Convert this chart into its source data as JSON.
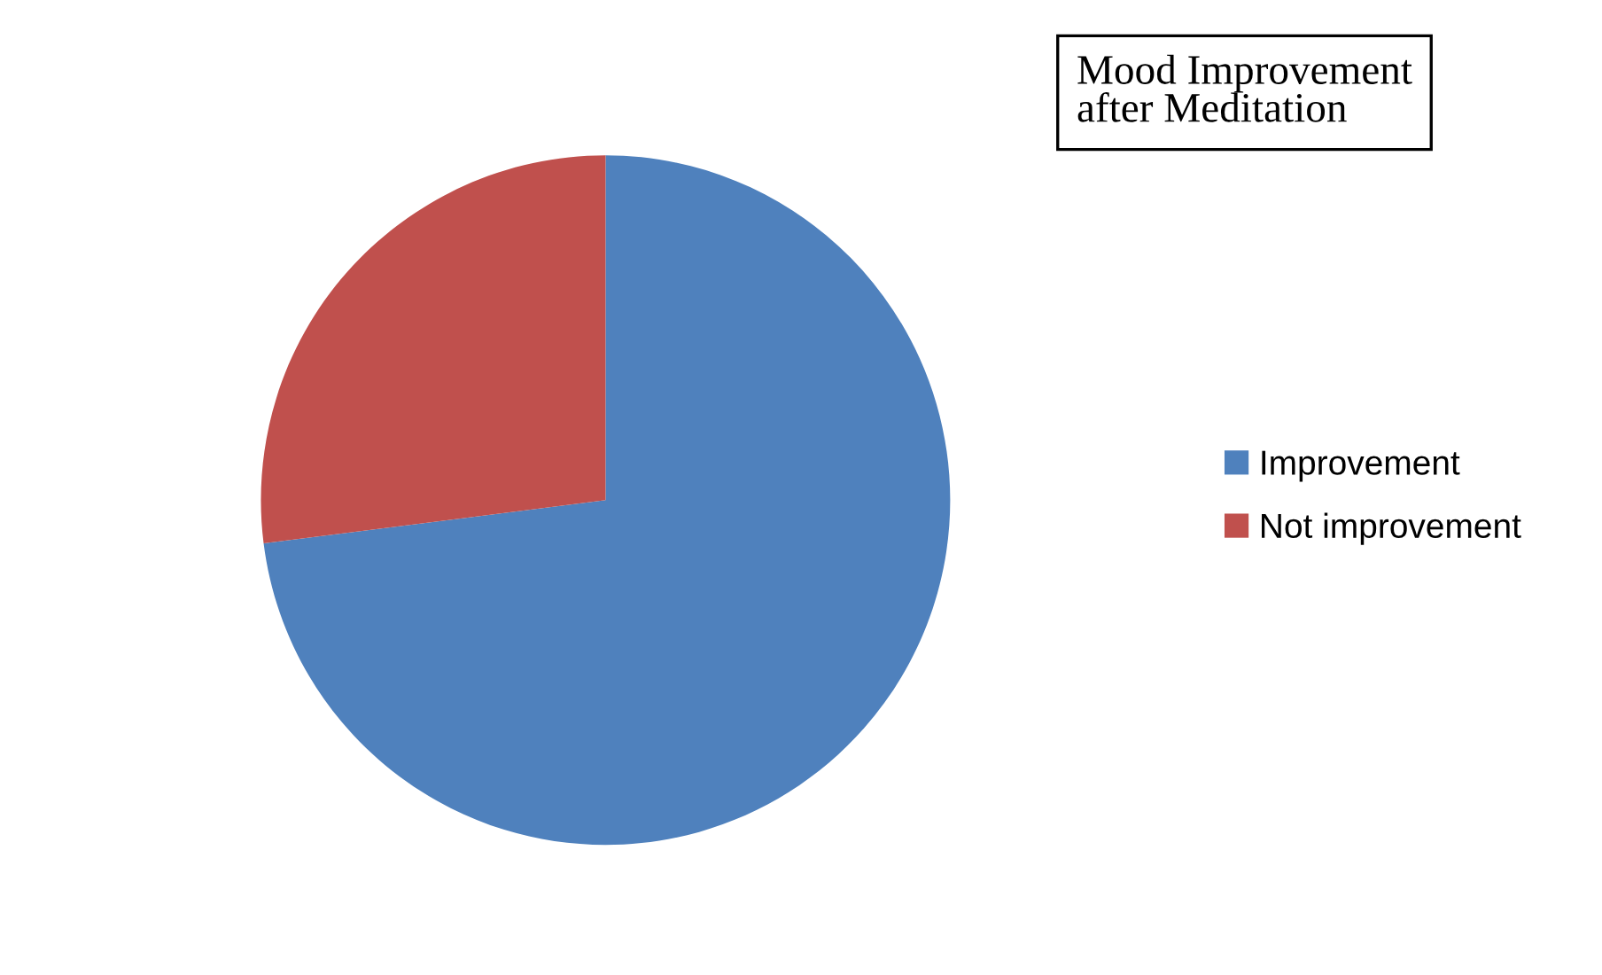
{
  "chart_data": {
    "type": "pie",
    "title": "Mood Improvement\nafter Meditation",
    "categories": [
      "Improvement",
      "Not improvement"
    ],
    "values": [
      73,
      27
    ],
    "colors": [
      "#4f81bd",
      "#c0504d"
    ],
    "legend": "right"
  }
}
